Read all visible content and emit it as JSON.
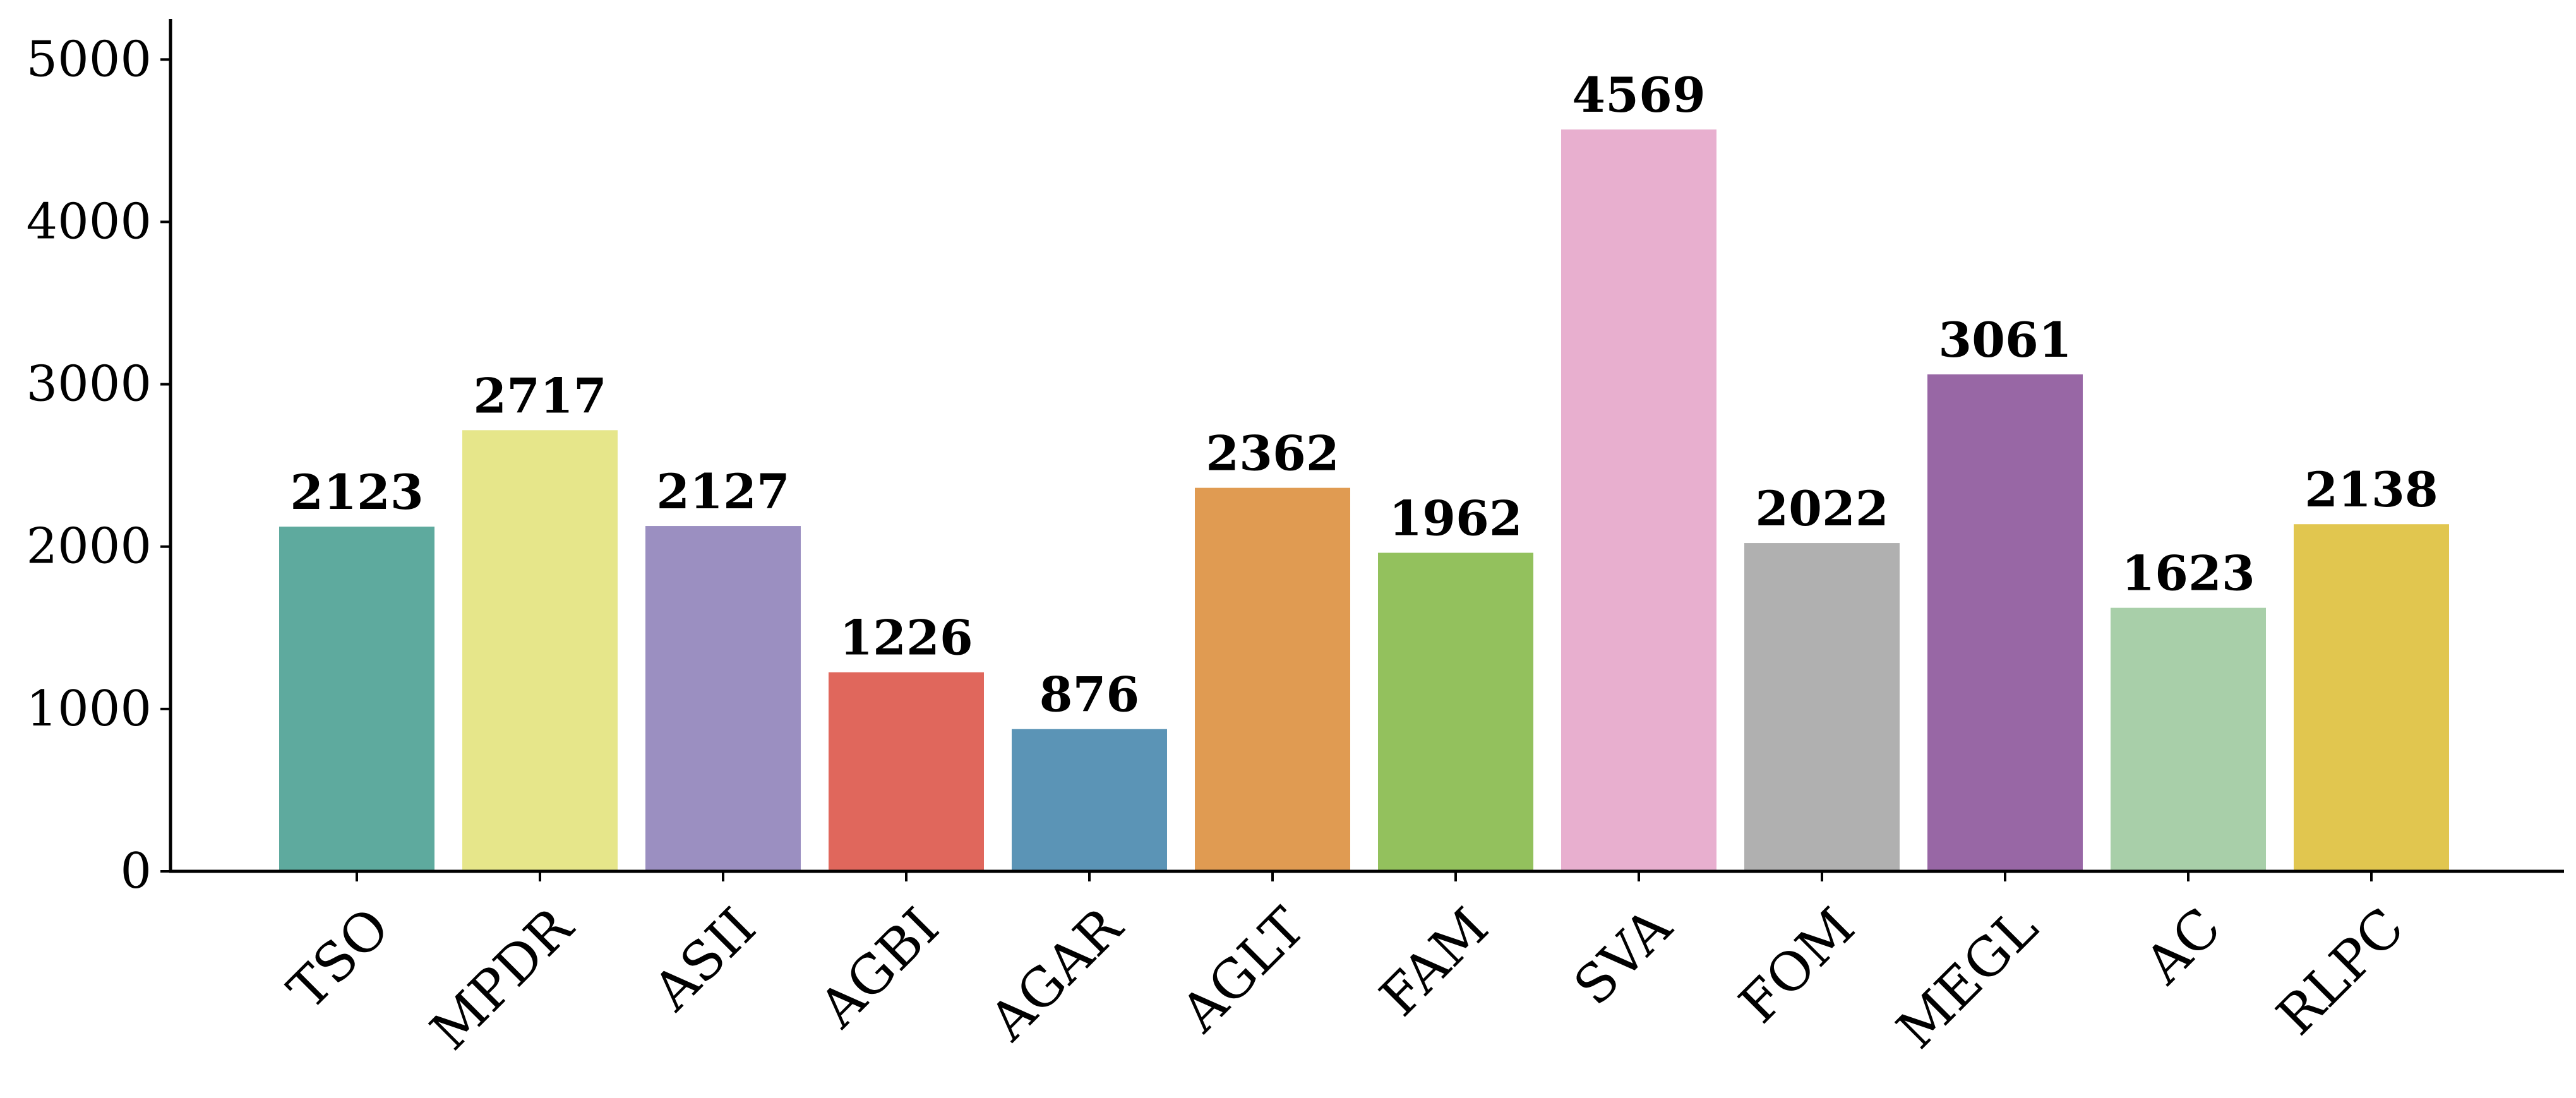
{
  "chart_data": {
    "type": "bar",
    "title": "",
    "xlabel": "",
    "ylabel": "",
    "categories": [
      "TSO",
      "MPDR",
      "ASII",
      "AGBI",
      "AGAR",
      "AGLT",
      "FAM",
      "SVA",
      "FOM",
      "MEGL",
      "AC",
      "RLPC"
    ],
    "values": [
      2123,
      2717,
      2127,
      1226,
      876,
      2362,
      1962,
      4569,
      2022,
      3061,
      1623,
      2138
    ],
    "value_labels": [
      "2123",
      "2717",
      "2127",
      "1226",
      "876",
      "2362",
      "1962",
      "4569",
      "2022",
      "3061",
      "1623",
      "2138"
    ],
    "colors": [
      "#5eaa9e",
      "#e6e68a",
      "#9b8fc1",
      "#e0675c",
      "#5b94b6",
      "#e09b52",
      "#93c15d",
      "#e8afcf",
      "#b0b0b0",
      "#9867a5",
      "#a8cfa9",
      "#e1c64f"
    ],
    "ylim": [
      0,
      5250
    ],
    "yticks": [
      0,
      1000,
      2000,
      3000,
      4000,
      5000
    ],
    "ytick_labels": [
      "0",
      "1000",
      "2000",
      "3000",
      "4000",
      "5000"
    ],
    "x_tick_rotation_deg": 45,
    "grid": false,
    "legend": "none"
  }
}
